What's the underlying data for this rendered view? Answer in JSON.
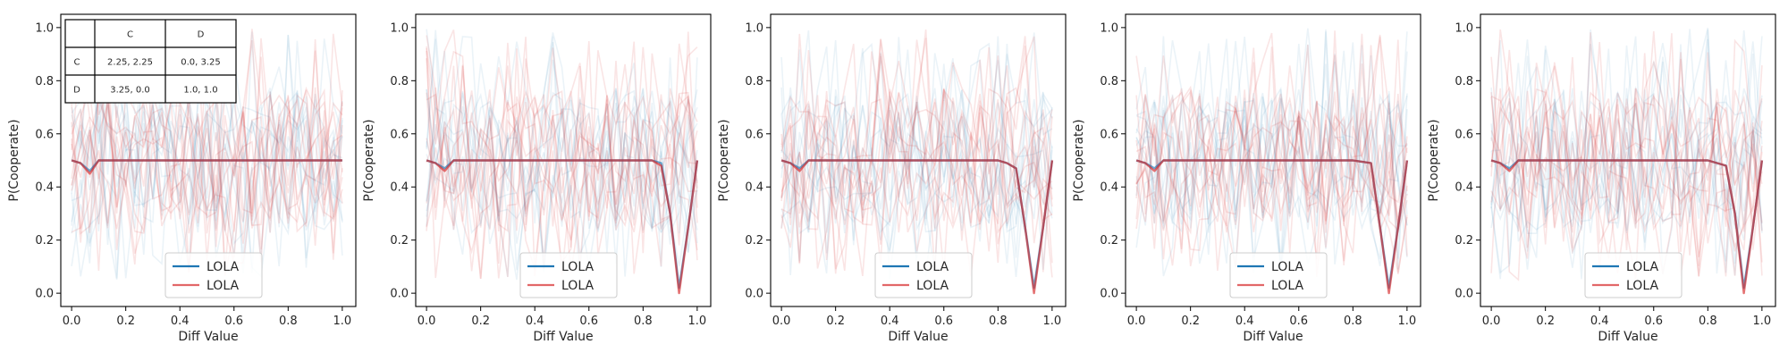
{
  "colors": {
    "blue": "#1f77b4",
    "red": "#d62728"
  },
  "chart_data": [
    {
      "type": "line",
      "xlabel": "Diff Value",
      "ylabel": "P(Cooperate)",
      "xlim": [
        -0.04,
        1.05
      ],
      "ylim": [
        -0.05,
        1.05
      ],
      "xticks": [
        "0.0",
        "0.2",
        "0.4",
        "0.6",
        "0.8",
        "1.0"
      ],
      "yticks": [
        "0.0",
        "0.2",
        "0.4",
        "0.6",
        "0.8",
        "1.0"
      ],
      "legend": {
        "placement": "lower center",
        "entries": [
          "LOLA",
          "LOLA"
        ]
      },
      "payoff_table": {
        "col_headers": [
          "C",
          "D"
        ],
        "rows": [
          {
            "label": "C",
            "cells": [
              "2.25, 2.25",
              "0.0, 3.25"
            ]
          },
          {
            "label": "D",
            "cells": [
              "3.25, 0.0",
              "1.0, 1.0"
            ]
          }
        ]
      },
      "series": [
        {
          "name": "LOLA",
          "color": "blue",
          "x": [
            0,
            0.033,
            0.067,
            0.1,
            0.2,
            0.3,
            0.4,
            0.5,
            0.6,
            0.7,
            0.8,
            0.9,
            1.0
          ],
          "y": [
            0.5,
            0.49,
            0.46,
            0.5,
            0.5,
            0.5,
            0.5,
            0.5,
            0.5,
            0.5,
            0.5,
            0.5,
            0.5
          ]
        },
        {
          "name": "LOLA",
          "color": "red",
          "x": [
            0,
            0.033,
            0.067,
            0.1,
            0.2,
            0.3,
            0.4,
            0.5,
            0.6,
            0.7,
            0.8,
            0.9,
            1.0
          ],
          "y": [
            0.5,
            0.49,
            0.45,
            0.5,
            0.5,
            0.5,
            0.5,
            0.5,
            0.5,
            0.5,
            0.5,
            0.5,
            0.5
          ]
        }
      ]
    },
    {
      "type": "line",
      "xlabel": "Diff Value",
      "ylabel": "P(Cooperate)",
      "xlim": [
        -0.04,
        1.05
      ],
      "ylim": [
        -0.05,
        1.05
      ],
      "xticks": [
        "0.0",
        "0.2",
        "0.4",
        "0.6",
        "0.8",
        "1.0"
      ],
      "yticks": [
        "0.0",
        "0.2",
        "0.4",
        "0.6",
        "0.8",
        "1.0"
      ],
      "legend": {
        "placement": "lower center",
        "entries": [
          "LOLA",
          "LOLA"
        ]
      },
      "series": [
        {
          "name": "LOLA",
          "color": "blue",
          "x": [
            0,
            0.033,
            0.067,
            0.1,
            0.2,
            0.3,
            0.4,
            0.5,
            0.6,
            0.7,
            0.8,
            0.833,
            0.867,
            0.9,
            0.933,
            0.967,
            1.0
          ],
          "y": [
            0.5,
            0.49,
            0.47,
            0.5,
            0.5,
            0.5,
            0.5,
            0.5,
            0.5,
            0.5,
            0.5,
            0.5,
            0.49,
            0.3,
            0.02,
            0.25,
            0.5
          ]
        },
        {
          "name": "LOLA",
          "color": "red",
          "x": [
            0,
            0.033,
            0.067,
            0.1,
            0.2,
            0.3,
            0.4,
            0.5,
            0.6,
            0.7,
            0.8,
            0.833,
            0.867,
            0.9,
            0.933,
            0.967,
            1.0
          ],
          "y": [
            0.5,
            0.49,
            0.46,
            0.5,
            0.5,
            0.5,
            0.5,
            0.5,
            0.5,
            0.5,
            0.5,
            0.5,
            0.48,
            0.3,
            0.0,
            0.25,
            0.5
          ]
        }
      ]
    },
    {
      "type": "line",
      "xlabel": "Diff Value",
      "ylabel": "P(Cooperate)",
      "xlim": [
        -0.04,
        1.05
      ],
      "ylim": [
        -0.05,
        1.05
      ],
      "xticks": [
        "0.0",
        "0.2",
        "0.4",
        "0.6",
        "0.8",
        "1.0"
      ],
      "yticks": [
        "0.0",
        "0.2",
        "0.4",
        "0.6",
        "0.8",
        "1.0"
      ],
      "legend": {
        "placement": "lower center",
        "entries": [
          "LOLA",
          "LOLA"
        ]
      },
      "series": [
        {
          "name": "LOLA",
          "color": "blue",
          "x": [
            0,
            0.033,
            0.067,
            0.1,
            0.2,
            0.3,
            0.4,
            0.5,
            0.6,
            0.7,
            0.8,
            0.833,
            0.867,
            0.9,
            0.933,
            0.967,
            1.0
          ],
          "y": [
            0.5,
            0.49,
            0.47,
            0.5,
            0.5,
            0.5,
            0.5,
            0.5,
            0.5,
            0.5,
            0.5,
            0.49,
            0.47,
            0.25,
            0.02,
            0.25,
            0.5
          ]
        },
        {
          "name": "LOLA",
          "color": "red",
          "x": [
            0,
            0.033,
            0.067,
            0.1,
            0.2,
            0.3,
            0.4,
            0.5,
            0.6,
            0.7,
            0.8,
            0.833,
            0.867,
            0.9,
            0.933,
            0.967,
            1.0
          ],
          "y": [
            0.5,
            0.49,
            0.46,
            0.5,
            0.5,
            0.5,
            0.5,
            0.5,
            0.5,
            0.5,
            0.5,
            0.49,
            0.47,
            0.25,
            0.0,
            0.25,
            0.5
          ]
        }
      ]
    },
    {
      "type": "line",
      "xlabel": "Diff Value",
      "ylabel": "P(Cooperate)",
      "xlim": [
        -0.04,
        1.05
      ],
      "ylim": [
        -0.05,
        1.05
      ],
      "xticks": [
        "0.0",
        "0.2",
        "0.4",
        "0.6",
        "0.8",
        "1.0"
      ],
      "yticks": [
        "0.0",
        "0.2",
        "0.4",
        "0.6",
        "0.8",
        "1.0"
      ],
      "legend": {
        "placement": "lower center",
        "entries": [
          "LOLA",
          "LOLA"
        ]
      },
      "series": [
        {
          "name": "LOLA",
          "color": "blue",
          "x": [
            0,
            0.033,
            0.067,
            0.1,
            0.2,
            0.3,
            0.4,
            0.5,
            0.6,
            0.7,
            0.8,
            0.867,
            0.9,
            0.933,
            0.967,
            1.0
          ],
          "y": [
            0.5,
            0.49,
            0.47,
            0.5,
            0.5,
            0.5,
            0.5,
            0.5,
            0.5,
            0.5,
            0.5,
            0.49,
            0.25,
            0.02,
            0.25,
            0.5
          ]
        },
        {
          "name": "LOLA",
          "color": "red",
          "x": [
            0,
            0.033,
            0.067,
            0.1,
            0.2,
            0.3,
            0.4,
            0.5,
            0.6,
            0.7,
            0.8,
            0.867,
            0.9,
            0.933,
            0.967,
            1.0
          ],
          "y": [
            0.5,
            0.49,
            0.46,
            0.5,
            0.5,
            0.5,
            0.5,
            0.5,
            0.5,
            0.5,
            0.5,
            0.49,
            0.25,
            0.0,
            0.25,
            0.5
          ]
        }
      ]
    },
    {
      "type": "line",
      "xlabel": "Diff Value",
      "ylabel": "P(Cooperate)",
      "xlim": [
        -0.04,
        1.05
      ],
      "ylim": [
        -0.05,
        1.05
      ],
      "xticks": [
        "0.0",
        "0.2",
        "0.4",
        "0.6",
        "0.8",
        "1.0"
      ],
      "yticks": [
        "0.0",
        "0.2",
        "0.4",
        "0.6",
        "0.8",
        "1.0"
      ],
      "legend": {
        "placement": "lower center",
        "entries": [
          "LOLA",
          "LOLA"
        ]
      },
      "series": [
        {
          "name": "LOLA",
          "color": "blue",
          "x": [
            0,
            0.033,
            0.067,
            0.1,
            0.2,
            0.3,
            0.4,
            0.5,
            0.6,
            0.7,
            0.8,
            0.867,
            0.9,
            0.933,
            0.967,
            1.0
          ],
          "y": [
            0.5,
            0.49,
            0.47,
            0.5,
            0.5,
            0.5,
            0.5,
            0.5,
            0.5,
            0.5,
            0.5,
            0.48,
            0.3,
            0.02,
            0.25,
            0.5
          ]
        },
        {
          "name": "LOLA",
          "color": "red",
          "x": [
            0,
            0.033,
            0.067,
            0.1,
            0.2,
            0.3,
            0.4,
            0.5,
            0.6,
            0.7,
            0.8,
            0.867,
            0.9,
            0.933,
            0.967,
            1.0
          ],
          "y": [
            0.5,
            0.49,
            0.46,
            0.5,
            0.5,
            0.5,
            0.5,
            0.5,
            0.5,
            0.5,
            0.5,
            0.48,
            0.3,
            0.0,
            0.25,
            0.5
          ]
        }
      ]
    }
  ]
}
